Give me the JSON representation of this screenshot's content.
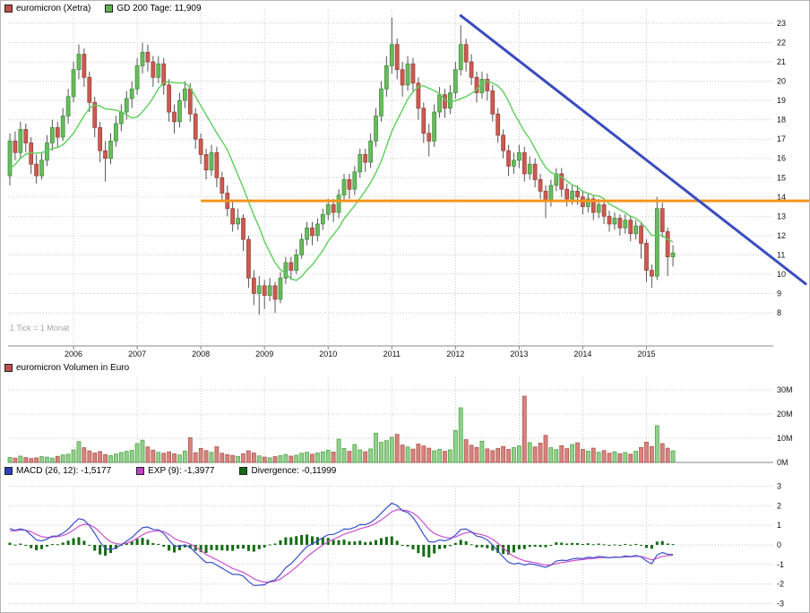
{
  "note": {
    "tick_scale": "1 Tick = 1 Monat"
  },
  "legends": {
    "main": [
      {
        "label": "euromicron (Xetra)",
        "color": "#c0504a"
      },
      {
        "label": "GD 200 Tage: 11,909",
        "color": "#5fb14c"
      }
    ],
    "volume": [
      {
        "label": "euromicron Volumen in Euro",
        "color": "#c0504a"
      }
    ],
    "macd": [
      {
        "label": "MACD (26, 12): -1,5177",
        "color": "#2f42bd"
      },
      {
        "label": "EXP (9): -1,3977",
        "color": "#c341c3"
      },
      {
        "label": "Divergence: -0,11999",
        "color": "#156b15"
      }
    ]
  },
  "axes": {
    "price_ticks": [
      23,
      22,
      21,
      20,
      19,
      18,
      17,
      16,
      15,
      14,
      13,
      12,
      11,
      10,
      9,
      8
    ],
    "volume_ticks": [
      {
        "label": "30M",
        "v": 30
      },
      {
        "label": "20M",
        "v": 20
      },
      {
        "label": "10M",
        "v": 10
      },
      {
        "label": "0M",
        "v": 0
      }
    ],
    "macd_ticks": [
      3,
      2,
      1,
      0,
      -1,
      -2,
      -3
    ],
    "years": [
      2006,
      2007,
      2008,
      2009,
      2010,
      2011,
      2012,
      2013,
      2014,
      2015
    ]
  },
  "colors": {
    "grid": "#c9c9c9",
    "axis_line": "#888888",
    "wick": "#555555",
    "candle_up_fill": "#6abb5e",
    "candle_up_stroke": "#3d8f3d",
    "candle_down_fill": "#cd5a50",
    "candle_down_stroke": "#96403a",
    "gd200_line": "#5bcf5b",
    "orange_line": "#f6941d",
    "trend_line": "#3a4cc0",
    "vol_up_fill": "#93d18c",
    "vol_up_stroke": "#49a045",
    "vol_down_fill": "#d9847e",
    "vol_down_stroke": "#a85049",
    "macd_line": "#3a50c8",
    "macd_signal": "#cd4fcd",
    "macd_divergence": "#156b15"
  },
  "chart_data": [
    {
      "type": "candlestick",
      "title": "euromicron (Xetra)",
      "interval": "1 month",
      "start_month": "2005-01",
      "ylim": [
        8,
        23
      ],
      "legend_position": "top-left",
      "grid": true,
      "overlays": {
        "gd200": {
          "name": "GD 200 Tage",
          "last_value": 11.909,
          "window_months": 10
        },
        "orange_support_line": {
          "price": 13.8,
          "from_month_index": 36,
          "extends_to_right_edge": true
        },
        "blue_downtrend_line": {
          "from": {
            "month_index": 85,
            "price": 23.4
          },
          "to": {
            "month_index": 150,
            "price": 9.5
          }
        }
      },
      "candles_ohlc": [
        [
          15.1,
          17.3,
          14.6,
          16.9
        ],
        [
          16.9,
          17.4,
          15.9,
          16.3
        ],
        [
          16.3,
          17.9,
          16.0,
          17.5
        ],
        [
          17.5,
          17.8,
          16.3,
          16.8
        ],
        [
          16.8,
          17.1,
          15.2,
          15.7
        ],
        [
          15.7,
          16.2,
          14.7,
          15.1
        ],
        [
          15.1,
          16.3,
          14.9,
          15.9
        ],
        [
          15.9,
          17.2,
          15.6,
          16.8
        ],
        [
          16.8,
          18.0,
          16.4,
          17.6
        ],
        [
          17.6,
          17.9,
          16.6,
          17.1
        ],
        [
          17.1,
          18.6,
          16.9,
          18.2
        ],
        [
          18.2,
          19.6,
          17.8,
          19.2
        ],
        [
          19.2,
          21.0,
          18.9,
          20.6
        ],
        [
          20.6,
          21.9,
          20.1,
          21.4
        ],
        [
          21.4,
          21.7,
          19.7,
          20.2
        ],
        [
          20.2,
          20.5,
          18.4,
          18.9
        ],
        [
          18.9,
          19.2,
          17.1,
          17.6
        ],
        [
          17.6,
          17.9,
          15.8,
          16.4
        ],
        [
          16.4,
          16.9,
          14.8,
          16.0
        ],
        [
          16.0,
          17.3,
          15.7,
          16.9
        ],
        [
          16.9,
          18.2,
          16.6,
          17.8
        ],
        [
          17.8,
          18.8,
          17.4,
          18.4
        ],
        [
          18.4,
          19.5,
          18.0,
          19.1
        ],
        [
          19.1,
          20.0,
          18.6,
          19.6
        ],
        [
          19.6,
          21.2,
          19.3,
          20.8
        ],
        [
          20.8,
          22.0,
          20.4,
          21.5
        ],
        [
          21.5,
          21.9,
          20.5,
          21.0
        ],
        [
          21.0,
          21.3,
          19.7,
          20.2
        ],
        [
          20.2,
          21.3,
          19.9,
          20.9
        ],
        [
          20.9,
          21.2,
          19.3,
          19.8
        ],
        [
          19.8,
          20.1,
          17.9,
          18.4
        ],
        [
          18.4,
          18.8,
          17.3,
          17.9
        ],
        [
          17.9,
          19.4,
          17.6,
          19.0
        ],
        [
          19.0,
          20.0,
          18.6,
          19.6
        ],
        [
          19.6,
          19.9,
          17.9,
          18.3
        ],
        [
          18.3,
          18.6,
          16.5,
          17.0
        ],
        [
          17.0,
          17.3,
          15.7,
          16.2
        ],
        [
          16.2,
          16.5,
          14.9,
          15.4
        ],
        [
          15.4,
          16.7,
          15.1,
          16.3
        ],
        [
          16.3,
          16.6,
          14.5,
          15.0
        ],
        [
          15.0,
          15.3,
          13.8,
          14.2
        ],
        [
          14.2,
          14.6,
          13.0,
          13.4
        ],
        [
          13.4,
          13.8,
          12.2,
          12.6
        ],
        [
          12.6,
          13.4,
          12.3,
          12.9
        ],
        [
          12.9,
          13.1,
          11.2,
          11.8
        ],
        [
          11.8,
          12.0,
          9.3,
          9.8
        ],
        [
          9.8,
          10.2,
          8.4,
          9.0
        ],
        [
          9.0,
          9.9,
          7.9,
          9.4
        ],
        [
          9.4,
          9.7,
          8.2,
          8.9
        ],
        [
          8.9,
          9.8,
          8.6,
          9.4
        ],
        [
          9.4,
          9.6,
          8.0,
          8.7
        ],
        [
          8.7,
          10.1,
          8.5,
          9.8
        ],
        [
          9.8,
          10.9,
          9.5,
          10.6
        ],
        [
          10.6,
          10.9,
          9.7,
          10.2
        ],
        [
          10.2,
          11.3,
          10.0,
          11.0
        ],
        [
          11.0,
          12.1,
          10.8,
          11.8
        ],
        [
          11.8,
          12.7,
          11.5,
          12.4
        ],
        [
          12.4,
          12.7,
          11.5,
          12.0
        ],
        [
          12.0,
          12.9,
          11.7,
          12.6
        ],
        [
          12.6,
          13.4,
          12.3,
          13.1
        ],
        [
          13.1,
          13.9,
          12.8,
          13.6
        ],
        [
          13.6,
          13.9,
          12.7,
          13.2
        ],
        [
          13.2,
          14.4,
          12.9,
          14.1
        ],
        [
          14.1,
          15.2,
          13.8,
          14.9
        ],
        [
          14.9,
          15.2,
          13.9,
          14.4
        ],
        [
          14.4,
          15.6,
          14.1,
          15.3
        ],
        [
          15.3,
          16.5,
          15.0,
          16.2
        ],
        [
          16.2,
          16.5,
          15.3,
          15.8
        ],
        [
          15.8,
          17.3,
          15.5,
          16.9
        ],
        [
          16.9,
          18.6,
          16.6,
          18.2
        ],
        [
          18.2,
          20.0,
          17.9,
          19.6
        ],
        [
          19.6,
          21.3,
          19.2,
          20.8
        ],
        [
          20.8,
          23.3,
          20.4,
          21.9
        ],
        [
          21.9,
          22.2,
          20.1,
          20.6
        ],
        [
          20.6,
          21.0,
          19.2,
          19.8
        ],
        [
          19.8,
          21.3,
          19.5,
          20.9
        ],
        [
          20.9,
          21.2,
          19.4,
          19.9
        ],
        [
          19.9,
          20.2,
          18.0,
          18.6
        ],
        [
          18.6,
          18.9,
          16.8,
          17.3
        ],
        [
          17.3,
          17.8,
          16.1,
          16.9
        ],
        [
          16.9,
          18.8,
          16.6,
          18.4
        ],
        [
          18.4,
          19.7,
          18.1,
          19.3
        ],
        [
          19.3,
          19.6,
          18.1,
          18.6
        ],
        [
          18.6,
          19.8,
          18.3,
          19.4
        ],
        [
          19.4,
          21.0,
          19.1,
          20.6
        ],
        [
          20.6,
          22.9,
          20.3,
          21.9
        ],
        [
          21.9,
          22.2,
          20.5,
          21.0
        ],
        [
          21.0,
          21.4,
          19.8,
          20.2
        ],
        [
          20.2,
          20.5,
          18.9,
          19.4
        ],
        [
          19.4,
          20.5,
          19.1,
          20.1
        ],
        [
          20.1,
          20.4,
          19.0,
          19.5
        ],
        [
          19.5,
          19.8,
          17.9,
          18.3
        ],
        [
          18.3,
          18.6,
          16.8,
          17.2
        ],
        [
          17.2,
          17.5,
          16.0,
          16.4
        ],
        [
          16.4,
          16.7,
          15.1,
          15.6
        ],
        [
          15.6,
          16.3,
          15.2,
          15.9
        ],
        [
          15.9,
          16.7,
          15.5,
          16.3
        ],
        [
          16.3,
          16.6,
          14.8,
          15.2
        ],
        [
          15.2,
          16.1,
          14.9,
          15.7
        ],
        [
          15.7,
          16.0,
          14.5,
          14.9
        ],
        [
          14.9,
          15.2,
          13.9,
          14.3
        ],
        [
          14.3,
          14.6,
          12.9,
          13.8
        ],
        [
          13.8,
          14.9,
          13.5,
          14.6
        ],
        [
          14.6,
          15.5,
          14.3,
          15.2
        ],
        [
          15.2,
          15.5,
          14.0,
          14.4
        ],
        [
          14.4,
          14.7,
          13.5,
          13.9
        ],
        [
          13.9,
          14.6,
          13.6,
          14.3
        ],
        [
          14.3,
          14.6,
          13.6,
          14.0
        ],
        [
          14.0,
          14.3,
          13.1,
          13.5
        ],
        [
          13.5,
          14.2,
          13.2,
          13.9
        ],
        [
          13.9,
          14.1,
          12.8,
          13.2
        ],
        [
          13.2,
          13.9,
          12.9,
          13.6
        ],
        [
          13.6,
          13.8,
          12.6,
          13.0
        ],
        [
          13.0,
          13.3,
          12.2,
          12.6
        ],
        [
          12.6,
          13.2,
          12.3,
          12.9
        ],
        [
          12.9,
          13.1,
          12.0,
          12.4
        ],
        [
          12.4,
          13.1,
          12.1,
          12.8
        ],
        [
          12.8,
          13.0,
          11.7,
          12.1
        ],
        [
          12.1,
          12.8,
          11.8,
          12.5
        ],
        [
          12.5,
          12.7,
          10.8,
          11.6
        ],
        [
          11.6,
          11.8,
          9.6,
          10.2
        ],
        [
          10.2,
          10.5,
          9.3,
          9.9
        ],
        [
          9.9,
          14.0,
          9.7,
          13.4
        ],
        [
          13.4,
          13.7,
          11.9,
          12.2
        ],
        [
          12.2,
          12.4,
          9.9,
          10.9
        ],
        [
          10.9,
          11.5,
          10.4,
          11.1
        ]
      ]
    },
    {
      "type": "bar",
      "title": "euromicron Volumen in Euro",
      "unit": "million EUR",
      "ylim": [
        0,
        30
      ],
      "yticks": [
        "0M",
        "10M",
        "20M",
        "30M"
      ],
      "values_m_eur": [
        2.1,
        1.8,
        2.6,
        2.0,
        1.6,
        1.9,
        2.4,
        2.2,
        1.8,
        2.5,
        3.1,
        3.4,
        5.2,
        8.6,
        6.1,
        4.8,
        3.9,
        4.5,
        3.2,
        2.8,
        3.5,
        4.1,
        4.6,
        5.0,
        7.8,
        9.2,
        6.4,
        5.1,
        4.2,
        3.8,
        4.4,
        3.6,
        3.1,
        4.7,
        10.2,
        4.0,
        5.8,
        4.9,
        4.2,
        6.5,
        3.8,
        3.2,
        2.9,
        2.5,
        3.6,
        4.8,
        3.9,
        2.7,
        2.2,
        1.9,
        2.4,
        2.8,
        3.3,
        2.6,
        3.0,
        3.8,
        4.2,
        3.4,
        3.9,
        4.4,
        5.1,
        4.3,
        9.6,
        5.8,
        4.6,
        7.4,
        5.2,
        4.4,
        5.6,
        12.1,
        8.3,
        9.0,
        10.4,
        11.6,
        7.2,
        6.4,
        5.5,
        7.6,
        6.8,
        5.9,
        4.8,
        5.4,
        4.6,
        5.2,
        13.2,
        22.6,
        9.4,
        7.1,
        6.2,
        8.8,
        5.6,
        4.9,
        5.8,
        6.6,
        5.4,
        6.1,
        6.8,
        27.4,
        8.2,
        6.4,
        8.0,
        11.2,
        6.1,
        5.3,
        6.9,
        5.7,
        7.4,
        8.1,
        5.4,
        4.7,
        5.9,
        4.2,
        4.9,
        3.8,
        4.4,
        3.6,
        4.1,
        3.4,
        4.6,
        6.2,
        8.4,
        6.6,
        15.2,
        7.8,
        5.9,
        4.8
      ]
    },
    {
      "type": "line",
      "title": "MACD",
      "ylim": [
        -3,
        3
      ],
      "derived_from": "monthly closes of panel 1",
      "series": [
        {
          "name": "MACD (26, 12)",
          "last_value": -1.5177
        },
        {
          "name": "EXP (9)",
          "last_value": -1.3977
        },
        {
          "name": "Divergence",
          "last_value": -0.11999,
          "style": "histogram"
        }
      ]
    }
  ]
}
